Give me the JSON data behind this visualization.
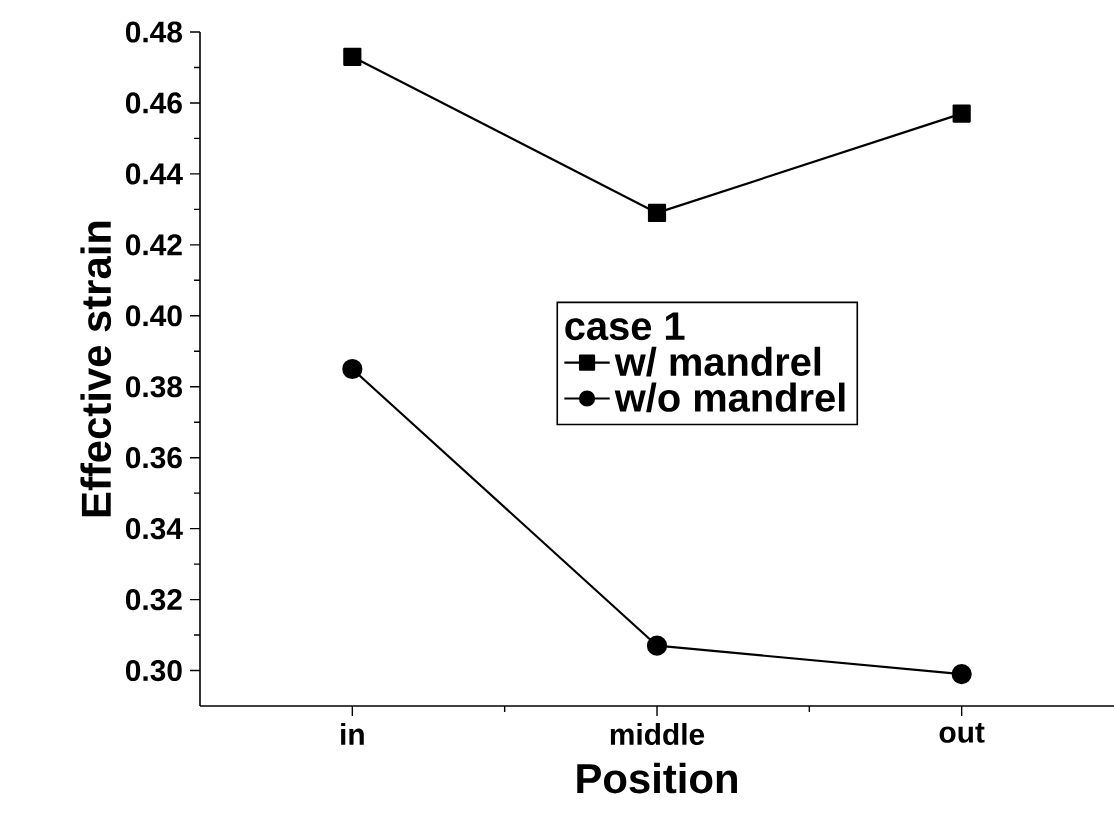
{
  "chart_data": {
    "type": "line",
    "xlabel": "Position",
    "ylabel": "Effective strain",
    "legend_title": "case 1",
    "categories": [
      "in",
      "middle",
      "out"
    ],
    "series": [
      {
        "name": "w/ mandrel",
        "color": "#000000",
        "marker": "square",
        "values": [
          0.473,
          0.429,
          0.457
        ]
      },
      {
        "name": "w/o mandrel",
        "color": "#000000",
        "marker": "circle",
        "values": [
          0.385,
          0.307,
          0.299
        ]
      }
    ],
    "ylim": [
      0.29,
      0.48
    ],
    "yticks": [
      {
        "value": 0.3,
        "label": "0.30"
      },
      0.32,
      0.34,
      0.36,
      0.38,
      {
        "value": 0.4,
        "label": "0.40"
      },
      0.42,
      0.44,
      0.46,
      0.48
    ],
    "grid": false,
    "legend": "right",
    "line_style": "solid"
  }
}
